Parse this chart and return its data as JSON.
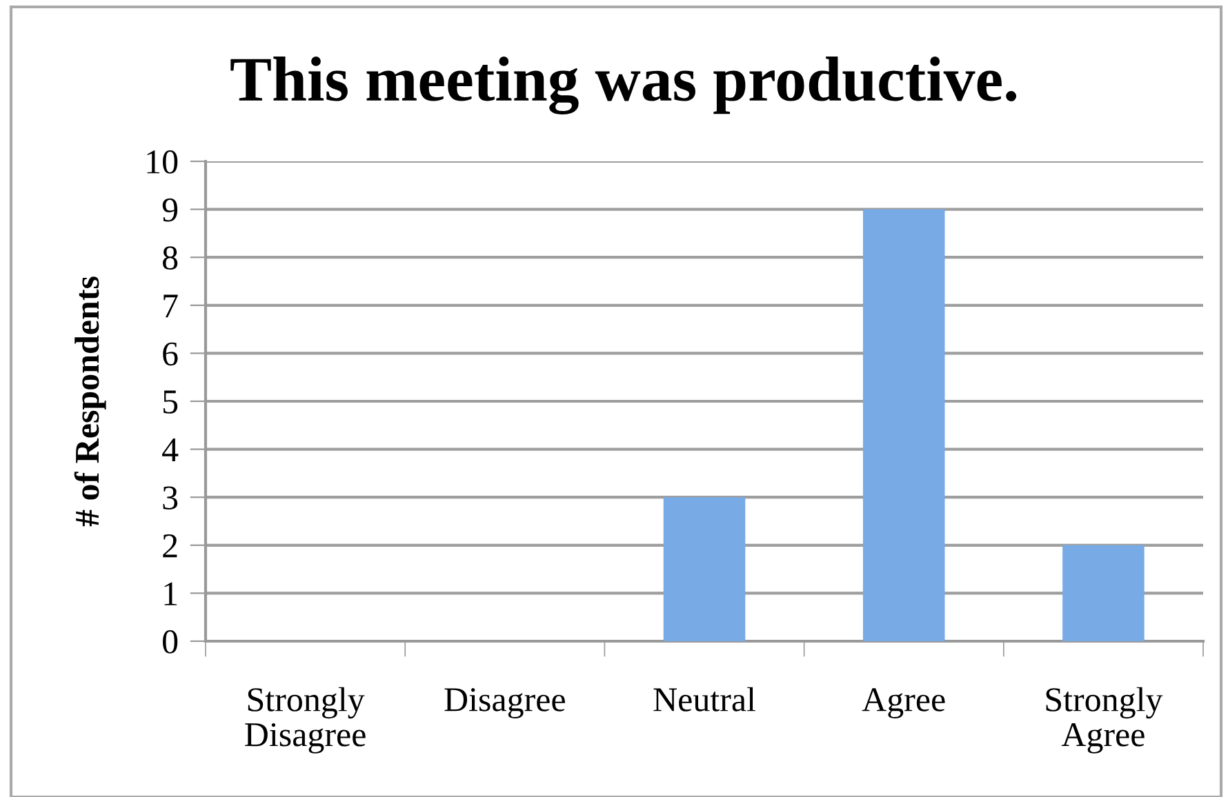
{
  "chart_data": {
    "type": "bar",
    "title": "This meeting was productive.",
    "ylabel": "# of Respondents",
    "categories": [
      "Strongly\nDisagree",
      "Disagree",
      "Neutral",
      "Agree",
      "Strongly\nAgree"
    ],
    "values": [
      0,
      0,
      3,
      9,
      2
    ],
    "color": "#78aae6",
    "ylim": [
      0,
      10
    ],
    "yticks": [
      0,
      1,
      2,
      3,
      4,
      5,
      6,
      7,
      8,
      9,
      10
    ],
    "grid": "y",
    "legend": false
  }
}
